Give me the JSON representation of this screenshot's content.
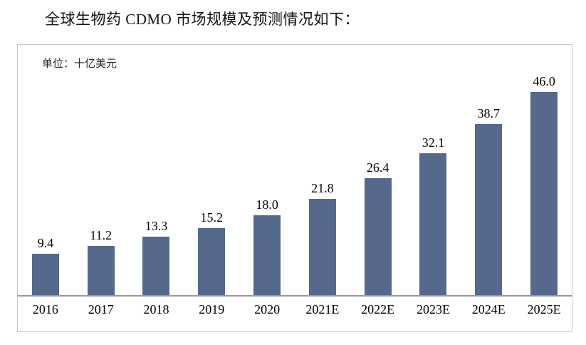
{
  "page": {
    "title": "全球生物药 CDMO 市场规模及预测情况如下："
  },
  "chart": {
    "unit_label": "单位：十亿美元"
  },
  "chart_data": {
    "type": "bar",
    "title": "全球生物药 CDMO 市场规模及预测情况如下",
    "unit": "十亿美元",
    "categories": [
      "2016",
      "2017",
      "2018",
      "2019",
      "2020",
      "2021E",
      "2022E",
      "2023E",
      "2024E",
      "2025E"
    ],
    "values": [
      9.4,
      11.2,
      13.3,
      15.2,
      18.0,
      21.8,
      26.4,
      32.1,
      38.7,
      46.0
    ],
    "value_labels": [
      "9.4",
      "11.2",
      "13.3",
      "15.2",
      "18.0",
      "21.8",
      "26.4",
      "32.1",
      "38.7",
      "46.0"
    ],
    "xlabel": "",
    "ylabel": "十亿美元",
    "ylim": [
      0,
      48
    ],
    "grid": false,
    "legend": "none",
    "bar_color": "#55698D",
    "axis_line_color": "#9a9a9a",
    "box_border_color": "#c6c6c6"
  }
}
